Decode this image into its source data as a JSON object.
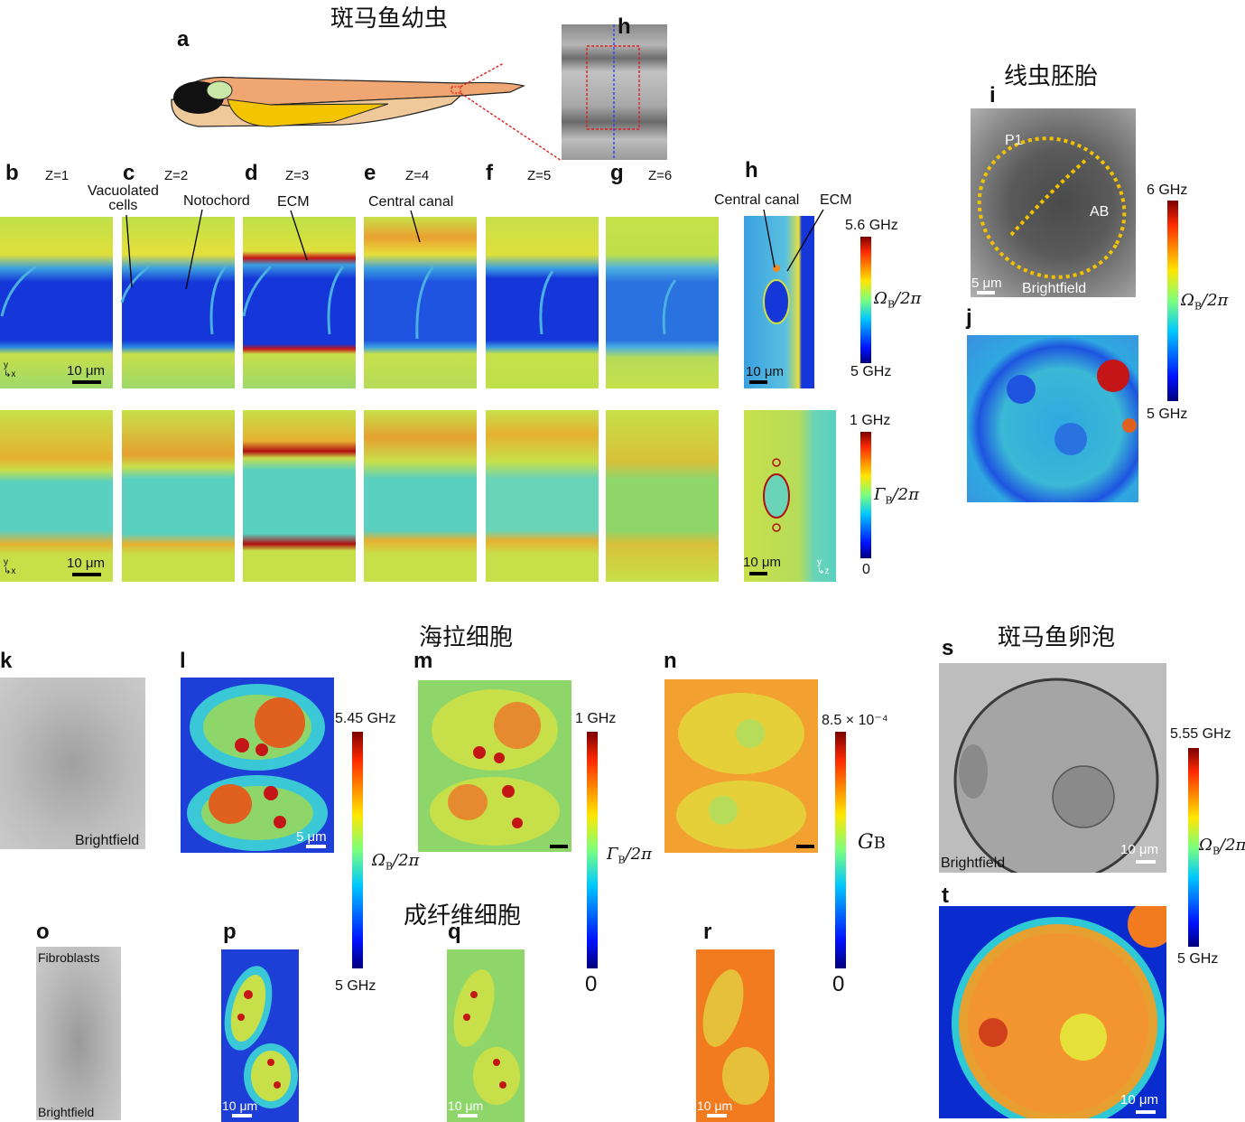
{
  "titles": {
    "zebrafish_larva": "斑马鱼幼虫",
    "nematode_embryo": "线虫胚胎",
    "hela": "海拉细胞",
    "fibroblast": "成纤维细胞",
    "zebrafish_oocyte": "斑马鱼卵泡"
  },
  "panel_labels": {
    "a": "a",
    "h_top": "h",
    "b": "b",
    "c": "c",
    "d": "d",
    "e": "e",
    "f": "f",
    "g": "g",
    "h": "h",
    "i": "i",
    "j": "j",
    "k": "k",
    "l": "l",
    "m": "m",
    "n": "n",
    "o": "o",
    "p": "p",
    "q": "q",
    "r": "r",
    "s": "s",
    "t": "t"
  },
  "z_labels": [
    "Z=1",
    "Z=2",
    "Z=3",
    "Z=4",
    "Z=5",
    "Z=6"
  ],
  "annotations": {
    "vacuolated_cells": "Vacuolated\ncells",
    "notochord": "Notochord",
    "ecm_d": "ECM",
    "central_canal_e": "Central canal",
    "central_canal_h": "Central canal",
    "ecm_h": "ECM",
    "p1": "P1",
    "ab": "AB",
    "brightfield_i": "Brightfield",
    "brightfield_k": "Brightfield",
    "brightfield_o": "Brightfield",
    "fibroblasts": "Fibroblasts",
    "brightfield_s": "Brightfield"
  },
  "axes": {
    "y": "y",
    "x": "x",
    "z": "z"
  },
  "scalebars": {
    "b_top": "10 μm",
    "b_bottom": "10 μm",
    "h_top": "10 μm",
    "h_bottom": "10 μm",
    "i": "5 μm",
    "l": "5 μm",
    "p": "10 μm",
    "q": "10 μm",
    "r": "10 μm",
    "s": "10 μm",
    "t": "10 μm"
  },
  "colorbars": {
    "omega_larva": {
      "max": "5.6 GHz",
      "min": "5 GHz",
      "symbol": "Ω",
      "sub": "B",
      "den": "/2π"
    },
    "gamma_larva": {
      "max": "1 GHz",
      "min": "0",
      "symbol": "Γ",
      "sub": "B",
      "den": "/2π"
    },
    "omega_nematode": {
      "max": "6 GHz",
      "min": "5 GHz",
      "symbol": "Ω",
      "sub": "B",
      "den": "/2π"
    },
    "omega_hela": {
      "max": "5.45 GHz",
      "min": "5 GHz",
      "symbol": "Ω",
      "sub": "B",
      "den": "/2π"
    },
    "gamma_hela": {
      "max": "1 GHz",
      "min": "0",
      "symbol": "Γ",
      "sub": "B",
      "den": "/2π"
    },
    "g_hela": {
      "max": "8.5 × 10⁻⁴",
      "min": "0",
      "symbol": "G",
      "sub": "B",
      "den": ""
    },
    "omega_oocyte": {
      "max": "5.55 GHz",
      "min": "5 GHz",
      "symbol": "Ω",
      "sub": "B",
      "den": "/2π"
    }
  },
  "colors": {
    "jet_blue": "#0a2ccf",
    "jet_cyan": "#2fc9d6",
    "jet_green": "#8ed66a",
    "jet_yellow": "#e9e33a",
    "jet_orange": "#f28a1f",
    "jet_red": "#c41616",
    "fish_body": "#f0a673",
    "fish_yolk": "#f5c400",
    "fish_eye": "#111111",
    "dashed_red": "#e02020",
    "dashed_yellow": "#f2c200"
  }
}
